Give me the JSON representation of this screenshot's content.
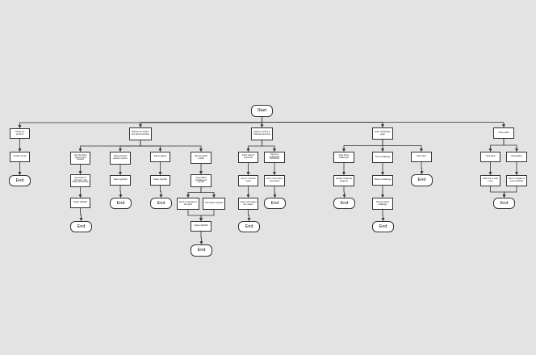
{
  "nodes": [
    {
      "id": "start",
      "label": "Start",
      "kind": "terminal"
    },
    {
      "id": "a1",
      "label": "Create an account",
      "kind": "step"
    },
    {
      "id": "a2",
      "label": "Confirm email",
      "kind": "step"
    },
    {
      "id": "a3",
      "label": "End",
      "kind": "terminal"
    },
    {
      "id": "b0",
      "label": "Browse the feed to see what's trending",
      "kind": "step"
    },
    {
      "id": "b1",
      "label": "View trending artwork and creators",
      "kind": "step"
    },
    {
      "id": "b1a",
      "label": "Like artwork, comment, and share with friends",
      "kind": "step"
    },
    {
      "id": "b1b",
      "label": "Swipe right/left",
      "kind": "step"
    },
    {
      "id": "b1c",
      "label": "End",
      "kind": "terminal"
    },
    {
      "id": "b2",
      "label": "Swipe through artwork options",
      "kind": "step"
    },
    {
      "id": "b2a",
      "label": "Swipe right/left",
      "kind": "step"
    },
    {
      "id": "b2b",
      "label": "End",
      "kind": "terminal"
    },
    {
      "id": "b3",
      "label": "Add to gallery",
      "kind": "step"
    },
    {
      "id": "b3a",
      "label": "Swipe right/left",
      "kind": "step"
    },
    {
      "id": "b3b",
      "label": "End",
      "kind": "terminal"
    },
    {
      "id": "b4",
      "label": "Tap the artist's profile",
      "kind": "step"
    },
    {
      "id": "b4a",
      "label": "View artist's portfolio and contact",
      "kind": "step"
    },
    {
      "id": "b4b",
      "label": "Send a message to the artist",
      "kind": "step"
    },
    {
      "id": "b4c",
      "label": "Visit artist's website",
      "kind": "step"
    },
    {
      "id": "b4d",
      "label": "Swipe right/left",
      "kind": "step"
    },
    {
      "id": "b4e",
      "label": "End",
      "kind": "terminal"
    },
    {
      "id": "c0",
      "label": "Explore content in followed accounts",
      "kind": "step"
    },
    {
      "id": "c1",
      "label": "Enter search keywords",
      "kind": "step"
    },
    {
      "id": "c1a",
      "label": "Tap on a search result",
      "kind": "step"
    },
    {
      "id": "c1b",
      "label": "Learn more about the creator",
      "kind": "step"
    },
    {
      "id": "c1c",
      "label": "End",
      "kind": "terminal"
    },
    {
      "id": "c2",
      "label": "Tap on a suggested connection",
      "kind": "step"
    },
    {
      "id": "c2a",
      "label": "Learn more about connection",
      "kind": "step"
    },
    {
      "id": "c2b",
      "label": "End",
      "kind": "terminal"
    },
    {
      "id": "d0",
      "label": "Enter challenges page",
      "kind": "step"
    },
    {
      "id": "d1",
      "label": "View active challenges",
      "kind": "step"
    },
    {
      "id": "d1a",
      "label": "Update challenge progress",
      "kind": "step"
    },
    {
      "id": "d1b",
      "label": "End",
      "kind": "terminal"
    },
    {
      "id": "d2",
      "label": "Join a challenge",
      "kind": "step"
    },
    {
      "id": "d2a",
      "label": "Share a challenge",
      "kind": "step"
    },
    {
      "id": "d2b",
      "label": "Tell you about challenge",
      "kind": "step"
    },
    {
      "id": "d2c",
      "label": "End",
      "kind": "terminal"
    },
    {
      "id": "d3",
      "label": "View rules",
      "kind": "step"
    },
    {
      "id": "d3a",
      "label": "End",
      "kind": "terminal"
    },
    {
      "id": "e0",
      "label": "View profile",
      "kind": "step"
    },
    {
      "id": "e1",
      "label": "View liked",
      "kind": "step"
    },
    {
      "id": "e1a",
      "label": "Click link to view more",
      "kind": "step"
    },
    {
      "id": "e2",
      "label": "View gallery",
      "kind": "step"
    },
    {
      "id": "e2a",
      "label": "Tap to navigate to more artworks",
      "kind": "step"
    },
    {
      "id": "e3",
      "label": "End",
      "kind": "terminal"
    }
  ],
  "edges": [
    [
      "start",
      "a1"
    ],
    [
      "start",
      "b0"
    ],
    [
      "start",
      "c0"
    ],
    [
      "start",
      "d0"
    ],
    [
      "start",
      "e0"
    ],
    [
      "a1",
      "a2"
    ],
    [
      "a2",
      "a3"
    ],
    [
      "b0",
      "b1"
    ],
    [
      "b0",
      "b2"
    ],
    [
      "b0",
      "b3"
    ],
    [
      "b0",
      "b4"
    ],
    [
      "b1",
      "b1a"
    ],
    [
      "b1a",
      "b1b"
    ],
    [
      "b1b",
      "b1c"
    ],
    [
      "b2",
      "b2a"
    ],
    [
      "b2a",
      "b2b"
    ],
    [
      "b3",
      "b3a"
    ],
    [
      "b3a",
      "b3b"
    ],
    [
      "b4",
      "b4a"
    ],
    [
      "b4a",
      "b4b"
    ],
    [
      "b4a",
      "b4c"
    ],
    [
      "b4b",
      "b4d"
    ],
    [
      "b4c",
      "b4d"
    ],
    [
      "b4d",
      "b4e"
    ],
    [
      "c0",
      "c1"
    ],
    [
      "c0",
      "c2"
    ],
    [
      "c1",
      "c1a"
    ],
    [
      "c1a",
      "c1b"
    ],
    [
      "c1b",
      "c1c"
    ],
    [
      "c2",
      "c2a"
    ],
    [
      "c2a",
      "c2b"
    ],
    [
      "d0",
      "d1"
    ],
    [
      "d0",
      "d2"
    ],
    [
      "d0",
      "d3"
    ],
    [
      "d1",
      "d1a"
    ],
    [
      "d1a",
      "d1b"
    ],
    [
      "d2",
      "d2a"
    ],
    [
      "d2a",
      "d2b"
    ],
    [
      "d2b",
      "d2c"
    ],
    [
      "d3",
      "d3a"
    ],
    [
      "e0",
      "e1"
    ],
    [
      "e0",
      "e2"
    ],
    [
      "e1",
      "e1a"
    ],
    [
      "e2",
      "e2a"
    ],
    [
      "e1a",
      "e3"
    ],
    [
      "e2a",
      "e3"
    ]
  ],
  "colors": {
    "background": "#e3e3e3",
    "node_fill": "#ffffff",
    "stroke": "#333333"
  }
}
